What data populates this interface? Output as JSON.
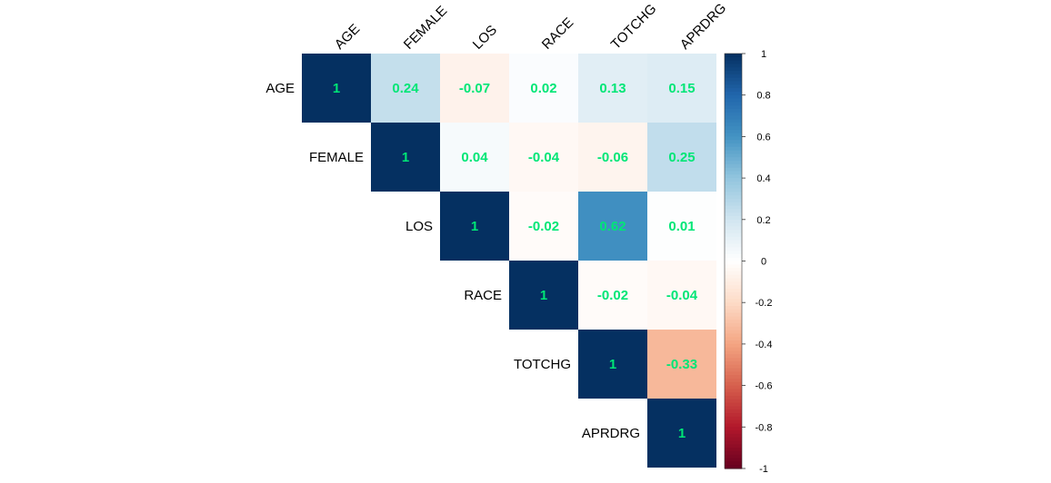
{
  "chart_data": {
    "type": "heatmap",
    "layout": "upper-triangle",
    "variables": [
      "AGE",
      "FEMALE",
      "LOS",
      "RACE",
      "TOTCHG",
      "APRDRG"
    ],
    "matrix": [
      [
        "1",
        "0.24",
        "-0.07",
        "0.02",
        "0.13",
        "0.15"
      ],
      [
        null,
        "1",
        "0.04",
        "-0.04",
        "-0.06",
        "0.25"
      ],
      [
        null,
        null,
        "1",
        "-0.02",
        "0.62",
        "0.01"
      ],
      [
        null,
        null,
        null,
        "1",
        "-0.02",
        "-0.04"
      ],
      [
        null,
        null,
        null,
        null,
        "1",
        "-0.33"
      ],
      [
        null,
        null,
        null,
        null,
        null,
        "1"
      ]
    ],
    "colorbar": {
      "range": [
        -1,
        1
      ],
      "ticks": [
        "1",
        "0.8",
        "0.6",
        "0.4",
        "0.2",
        "0",
        "-0.2",
        "-0.4",
        "-0.6",
        "-0.8",
        "-1"
      ]
    },
    "colors": {
      "negative_extreme": "#67001f",
      "neutral": "#ffffff",
      "positive_extreme": "#053061",
      "value_text": "#00e676"
    }
  }
}
